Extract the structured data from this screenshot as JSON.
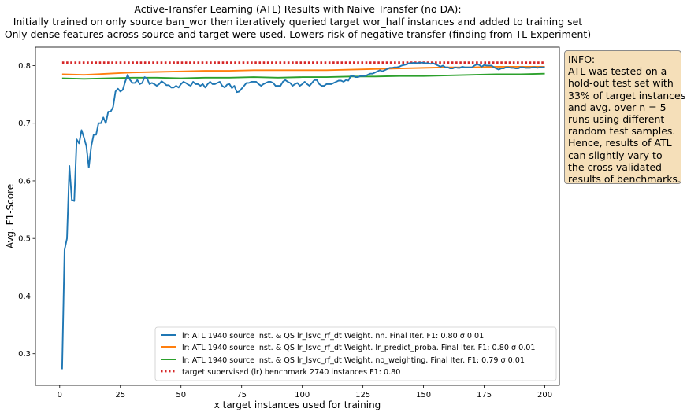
{
  "chart_data": {
    "type": "line",
    "title_lines": [
      "Active-Transfer Learning (ATL) Results with Naive Transfer (no DA):",
      "Initially trained on only source ban_wor then iteratively queried target wor_half instances and added to training set",
      "Only dense features across source and target were used. Lowers risk of negative transfer (finding from TL Experiment)"
    ],
    "xlabel": "x target instances used for training",
    "ylabel": "Avg. F1-Score",
    "xlim": [
      -10,
      206
    ],
    "ylim": [
      0.245,
      0.832
    ],
    "xticks": [
      "0",
      "25",
      "50",
      "75",
      "100",
      "125",
      "150",
      "175",
      "200"
    ],
    "yticks": [
      "0.3",
      "0.4",
      "0.5",
      "0.6",
      "0.7",
      "0.8"
    ],
    "grid": false,
    "legend_position": "lower right",
    "series": [
      {
        "name": "lr: ATL 1940 source inst. & QS lr_lsvc_rf_dt Weight. nn. Final Iter. F1: 0.80 σ 0.01",
        "color": "#1f77b4",
        "style": "solid",
        "points": [
          [
            1,
            0.273
          ],
          [
            2,
            0.48
          ],
          [
            3,
            0.5
          ],
          [
            4,
            0.626
          ],
          [
            5,
            0.567
          ],
          [
            6,
            0.565
          ],
          [
            7,
            0.672
          ],
          [
            8,
            0.665
          ],
          [
            9,
            0.688
          ],
          [
            10,
            0.675
          ],
          [
            11,
            0.66
          ],
          [
            12,
            0.623
          ],
          [
            13,
            0.66
          ],
          [
            14,
            0.68
          ],
          [
            15,
            0.68
          ],
          [
            16,
            0.7
          ],
          [
            17,
            0.7
          ],
          [
            18,
            0.71
          ],
          [
            19,
            0.7
          ],
          [
            20,
            0.72
          ],
          [
            21,
            0.72
          ],
          [
            22,
            0.728
          ],
          [
            23,
            0.755
          ],
          [
            24,
            0.76
          ],
          [
            25,
            0.755
          ],
          [
            26,
            0.758
          ],
          [
            27,
            0.772
          ],
          [
            28,
            0.784
          ],
          [
            29,
            0.775
          ],
          [
            30,
            0.77
          ],
          [
            31,
            0.77
          ],
          [
            32,
            0.775
          ],
          [
            33,
            0.768
          ],
          [
            34,
            0.77
          ],
          [
            35,
            0.78
          ],
          [
            36,
            0.778
          ],
          [
            37,
            0.768
          ],
          [
            38,
            0.77
          ],
          [
            39,
            0.768
          ],
          [
            40,
            0.765
          ],
          [
            41,
            0.768
          ],
          [
            42,
            0.773
          ],
          [
            43,
            0.77
          ],
          [
            44,
            0.766
          ],
          [
            45,
            0.766
          ],
          [
            46,
            0.762
          ],
          [
            47,
            0.762
          ],
          [
            48,
            0.765
          ],
          [
            49,
            0.762
          ],
          [
            50,
            0.768
          ],
          [
            51,
            0.772
          ],
          [
            52,
            0.77
          ],
          [
            53,
            0.767
          ],
          [
            54,
            0.765
          ],
          [
            55,
            0.772
          ],
          [
            56,
            0.768
          ],
          [
            57,
            0.768
          ],
          [
            58,
            0.765
          ],
          [
            59,
            0.768
          ],
          [
            60,
            0.762
          ],
          [
            61,
            0.768
          ],
          [
            62,
            0.772
          ],
          [
            63,
            0.768
          ],
          [
            64,
            0.768
          ],
          [
            65,
            0.77
          ],
          [
            66,
            0.772
          ],
          [
            67,
            0.765
          ],
          [
            68,
            0.762
          ],
          [
            69,
            0.767
          ],
          [
            70,
            0.768
          ],
          [
            71,
            0.761
          ],
          [
            72,
            0.765
          ],
          [
            73,
            0.754
          ],
          [
            74,
            0.755
          ],
          [
            75,
            0.76
          ],
          [
            76,
            0.765
          ],
          [
            77,
            0.77
          ],
          [
            78,
            0.77
          ],
          [
            79,
            0.772
          ],
          [
            80,
            0.772
          ],
          [
            81,
            0.772
          ],
          [
            82,
            0.768
          ],
          [
            83,
            0.765
          ],
          [
            84,
            0.768
          ],
          [
            85,
            0.77
          ],
          [
            86,
            0.772
          ],
          [
            87,
            0.772
          ],
          [
            88,
            0.77
          ],
          [
            89,
            0.765
          ],
          [
            90,
            0.765
          ],
          [
            91,
            0.765
          ],
          [
            92,
            0.772
          ],
          [
            93,
            0.775
          ],
          [
            94,
            0.772
          ],
          [
            95,
            0.77
          ],
          [
            96,
            0.765
          ],
          [
            97,
            0.768
          ],
          [
            98,
            0.77
          ],
          [
            99,
            0.765
          ],
          [
            100,
            0.768
          ],
          [
            101,
            0.772
          ],
          [
            102,
            0.768
          ],
          [
            103,
            0.765
          ],
          [
            104,
            0.77
          ],
          [
            105,
            0.775
          ],
          [
            106,
            0.775
          ],
          [
            107,
            0.768
          ],
          [
            108,
            0.765
          ],
          [
            109,
            0.765
          ],
          [
            110,
            0.768
          ],
          [
            111,
            0.768
          ],
          [
            112,
            0.768
          ],
          [
            113,
            0.77
          ],
          [
            114,
            0.772
          ],
          [
            115,
            0.774
          ],
          [
            116,
            0.774
          ],
          [
            117,
            0.772
          ],
          [
            118,
            0.775
          ],
          [
            119,
            0.774
          ],
          [
            120,
            0.782
          ],
          [
            121,
            0.782
          ],
          [
            122,
            0.78
          ],
          [
            123,
            0.78
          ],
          [
            124,
            0.782
          ],
          [
            125,
            0.782
          ],
          [
            126,
            0.782
          ],
          [
            127,
            0.784
          ],
          [
            128,
            0.786
          ],
          [
            129,
            0.786
          ],
          [
            130,
            0.788
          ],
          [
            131,
            0.79
          ],
          [
            132,
            0.792
          ],
          [
            133,
            0.79
          ],
          [
            134,
            0.792
          ],
          [
            135,
            0.794
          ],
          [
            136,
            0.796
          ],
          [
            137,
            0.796
          ],
          [
            138,
            0.797
          ],
          [
            139,
            0.797
          ],
          [
            140,
            0.798
          ],
          [
            141,
            0.8
          ],
          [
            142,
            0.801
          ],
          [
            143,
            0.802
          ],
          [
            144,
            0.804
          ],
          [
            145,
            0.804
          ],
          [
            146,
            0.805
          ],
          [
            147,
            0.804
          ],
          [
            148,
            0.805
          ],
          [
            149,
            0.805
          ],
          [
            150,
            0.805
          ],
          [
            151,
            0.804
          ],
          [
            152,
            0.804
          ],
          [
            153,
            0.803
          ],
          [
            154,
            0.804
          ],
          [
            155,
            0.802
          ],
          [
            156,
            0.8
          ],
          [
            157,
            0.798
          ],
          [
            158,
            0.8
          ],
          [
            159,
            0.797
          ],
          [
            160,
            0.797
          ],
          [
            161,
            0.795
          ],
          [
            162,
            0.795
          ],
          [
            163,
            0.797
          ],
          [
            164,
            0.796
          ],
          [
            165,
            0.796
          ],
          [
            166,
            0.798
          ],
          [
            167,
            0.797
          ],
          [
            168,
            0.797
          ],
          [
            169,
            0.797
          ],
          [
            170,
            0.797
          ],
          [
            171,
            0.8
          ],
          [
            172,
            0.802
          ],
          [
            173,
            0.801
          ],
          [
            174,
            0.798
          ],
          [
            175,
            0.801
          ],
          [
            176,
            0.8
          ],
          [
            177,
            0.8
          ],
          [
            178,
            0.8
          ],
          [
            179,
            0.797
          ],
          [
            180,
            0.795
          ],
          [
            181,
            0.793
          ],
          [
            182,
            0.795
          ],
          [
            183,
            0.795
          ],
          [
            184,
            0.797
          ],
          [
            185,
            0.797
          ],
          [
            186,
            0.796
          ],
          [
            187,
            0.796
          ],
          [
            188,
            0.795
          ],
          [
            189,
            0.795
          ],
          [
            190,
            0.797
          ],
          [
            191,
            0.797
          ],
          [
            192,
            0.796
          ],
          [
            193,
            0.796
          ],
          [
            194,
            0.796
          ],
          [
            195,
            0.797
          ],
          [
            196,
            0.797
          ],
          [
            197,
            0.796
          ],
          [
            198,
            0.797
          ],
          [
            199,
            0.797
          ],
          [
            200,
            0.797
          ]
        ]
      },
      {
        "name": "lr: ATL 1940 source inst. & QS lr_lsvc_rf_dt Weight. lr_predict_proba. Final Iter. F1: 0.80 σ 0.01",
        "color": "#ff7f0e",
        "style": "solid",
        "points": [
          [
            1,
            0.785
          ],
          [
            10,
            0.784
          ],
          [
            20,
            0.786
          ],
          [
            25,
            0.787
          ],
          [
            30,
            0.788
          ],
          [
            40,
            0.789
          ],
          [
            50,
            0.79
          ],
          [
            60,
            0.791
          ],
          [
            70,
            0.791
          ],
          [
            80,
            0.792
          ],
          [
            90,
            0.792
          ],
          [
            100,
            0.792
          ],
          [
            110,
            0.792
          ],
          [
            120,
            0.793
          ],
          [
            130,
            0.794
          ],
          [
            140,
            0.795
          ],
          [
            150,
            0.796
          ],
          [
            160,
            0.797
          ],
          [
            170,
            0.797
          ],
          [
            180,
            0.798
          ],
          [
            190,
            0.798
          ],
          [
            200,
            0.798
          ]
        ]
      },
      {
        "name": "lr: ATL 1940 source inst. & QS lr_lsvc_rf_dt Weight. no_weighting. Final Iter. F1: 0.79 σ 0.01",
        "color": "#2ca02c",
        "style": "solid",
        "points": [
          [
            1,
            0.778
          ],
          [
            10,
            0.777
          ],
          [
            20,
            0.778
          ],
          [
            30,
            0.779
          ],
          [
            40,
            0.779
          ],
          [
            50,
            0.778
          ],
          [
            60,
            0.779
          ],
          [
            70,
            0.779
          ],
          [
            80,
            0.78
          ],
          [
            90,
            0.779
          ],
          [
            100,
            0.78
          ],
          [
            110,
            0.78
          ],
          [
            120,
            0.781
          ],
          [
            130,
            0.781
          ],
          [
            140,
            0.782
          ],
          [
            150,
            0.782
          ],
          [
            160,
            0.783
          ],
          [
            170,
            0.784
          ],
          [
            180,
            0.785
          ],
          [
            190,
            0.785
          ],
          [
            200,
            0.786
          ]
        ]
      },
      {
        "name": "target supervised (lr) benchmark 2740 instances F1: 0.80",
        "color": "#d62728",
        "style": "dotted",
        "points": [
          [
            1,
            0.805
          ],
          [
            200,
            0.805
          ]
        ]
      }
    ]
  },
  "info_box": {
    "lines": [
      "INFO:",
      "ATL was tested on a",
      "hold-out test set with",
      "33% of target instances",
      "and avg. over n = 5",
      "runs using different",
      "random test samples.",
      "Hence, results of ATL",
      "can slightly vary to",
      "the cross validated",
      "results of benchmarks."
    ]
  }
}
